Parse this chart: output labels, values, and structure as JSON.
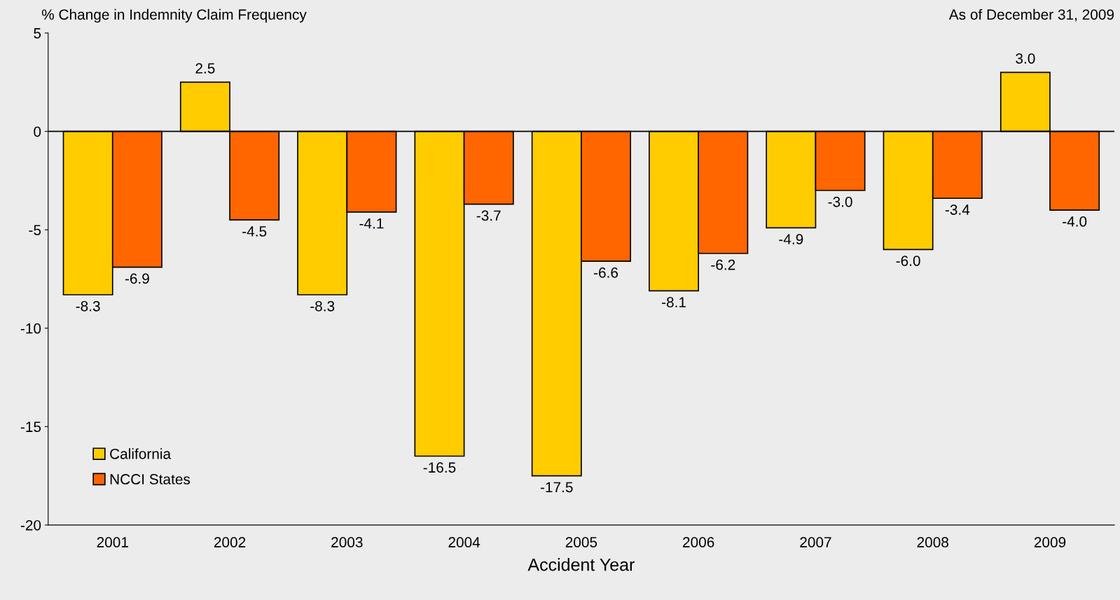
{
  "chart_data": {
    "type": "bar",
    "ylabel": "% Change in Indemnity Claim Frequency",
    "xlabel": "Accident Year",
    "annotations": [
      "As of December 31, 2009"
    ],
    "categories": [
      "2001",
      "2002",
      "2003",
      "2004",
      "2005",
      "2006",
      "2007",
      "2008",
      "2009"
    ],
    "series": [
      {
        "name": "California",
        "color": "#ffcc00",
        "values": [
          -8.3,
          2.5,
          -8.3,
          -16.5,
          -17.5,
          -8.1,
          -4.9,
          -6.0,
          3.0
        ],
        "value_labels": [
          "-8.3",
          "2.5",
          "-8.3",
          "-16.5",
          "-17.5",
          "-8.1",
          "-4.9",
          "-6.0",
          "3.0"
        ]
      },
      {
        "name": "NCCI States",
        "color": "#ff6600",
        "values": [
          -6.9,
          -4.5,
          -4.1,
          -3.7,
          -6.6,
          -6.2,
          -3.0,
          -3.4,
          -4.0
        ],
        "value_labels": [
          "-6.9",
          "-4.5",
          "-4.1",
          "-3.7",
          "-6.6",
          "-6.2",
          "-3.0",
          "-3.4",
          "-4.0"
        ]
      }
    ],
    "ylim": [
      -20,
      5
    ],
    "yticks": [
      -20,
      -15,
      -10,
      -5,
      0,
      5
    ],
    "ref_lines": [
      {
        "axis": "y",
        "value": 0,
        "color": "#000000"
      }
    ],
    "grid": false,
    "legend": "bottom left"
  }
}
